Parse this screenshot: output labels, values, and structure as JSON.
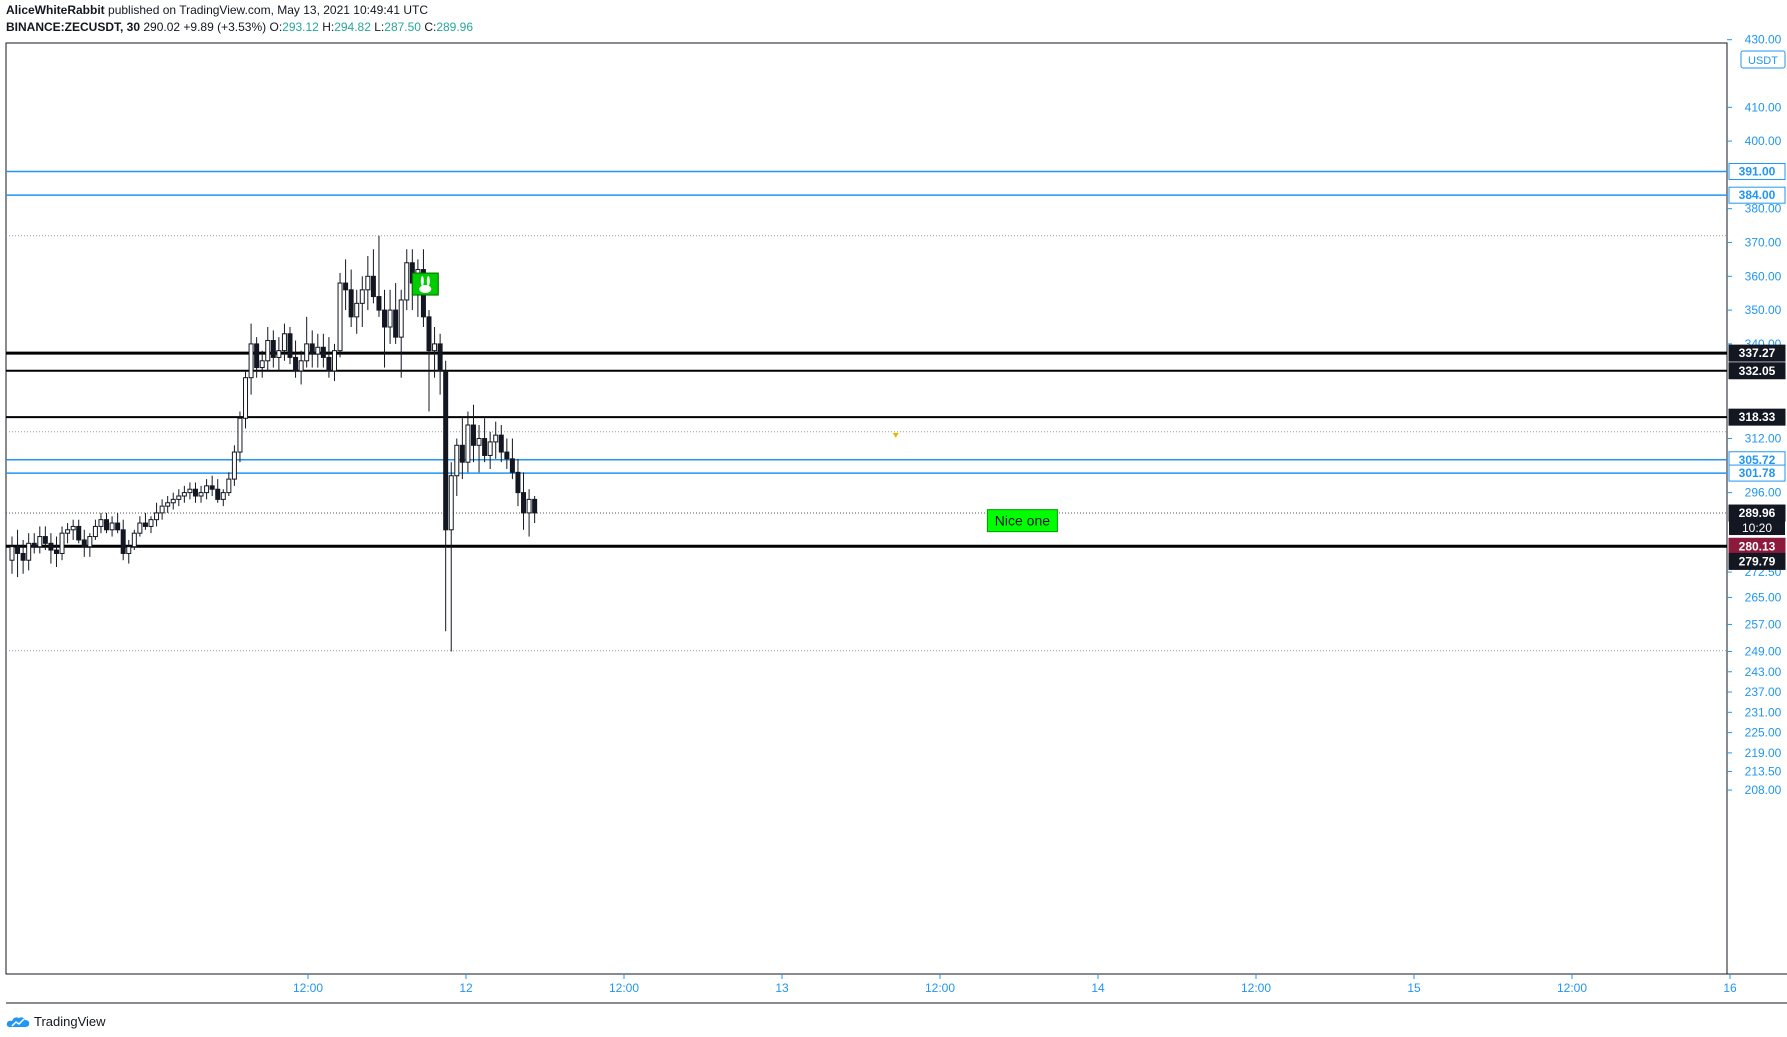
{
  "header": {
    "author": "AliceWhiteRabbit",
    "published": "published on TradingView.com, May 13, 2021 10:49:41 UTC",
    "symbol": "BINANCE:ZECUSDT, 30",
    "last": "290.02",
    "change": "+9.89 (+3.53%)",
    "o_label": "O:",
    "o_val": "293.12",
    "h_label": "H:",
    "h_val": "294.82",
    "l_label": "L:",
    "l_val": "287.50",
    "c_label": "C:",
    "c_val": "289.96"
  },
  "footer": {
    "brand": "TradingView"
  },
  "colors": {
    "accent": "#2196f3",
    "green": "#00ff00",
    "marker": "#8b1a3c",
    "axis": "#2196f3"
  },
  "chart_data": {
    "type": "candlestick",
    "currency": "USDT",
    "price_ticks": [
      "430.00",
      "410.00",
      "400.00",
      "380.00",
      "370.00",
      "360.00",
      "350.00",
      "340.00",
      "312.00",
      "296.00",
      "272.50",
      "265.00",
      "257.00",
      "249.00",
      "243.00",
      "237.00",
      "231.00",
      "225.00",
      "219.00",
      "213.50",
      "208.00"
    ],
    "time_ticks": [
      {
        "label": "12:00",
        "t": 0.5
      },
      {
        "label": "12",
        "t": 1.0
      },
      {
        "label": "12:00",
        "t": 1.5
      },
      {
        "label": "13",
        "t": 2.0
      },
      {
        "label": "12:00",
        "t": 2.5
      },
      {
        "label": "14",
        "t": 3.0
      },
      {
        "label": "12:00",
        "t": 3.5
      },
      {
        "label": "15",
        "t": 4.0
      },
      {
        "label": "12:00",
        "t": 4.5
      },
      {
        "label": "16",
        "t": 5.0
      }
    ],
    "horizontal_lines": [
      {
        "price": 391.0,
        "label": "391.00",
        "color": "#2196f3",
        "width": 1.5,
        "style": "solid",
        "badge": "blue"
      },
      {
        "price": 384.0,
        "label": "384.00",
        "color": "#2196f3",
        "width": 1.5,
        "style": "solid",
        "badge": "blue"
      },
      {
        "price": 372.0,
        "label": "",
        "color": "#999999",
        "width": 1,
        "style": "dotted",
        "badge": "none"
      },
      {
        "price": 337.27,
        "label": "337.27",
        "color": "#000000",
        "width": 3,
        "style": "solid",
        "badge": "black"
      },
      {
        "price": 332.05,
        "label": "332.05",
        "color": "#000000",
        "width": 2,
        "style": "solid",
        "badge": "black"
      },
      {
        "price": 318.33,
        "label": "318.33",
        "color": "#000000",
        "width": 2,
        "style": "solid",
        "badge": "black"
      },
      {
        "price": 314.0,
        "label": "",
        "color": "#999999",
        "width": 1,
        "style": "dotted",
        "badge": "none"
      },
      {
        "price": 305.72,
        "label": "305.72",
        "color": "#2196f3",
        "width": 1.5,
        "style": "solid",
        "badge": "blue"
      },
      {
        "price": 301.78,
        "label": "301.78",
        "color": "#2196f3",
        "width": 1.5,
        "style": "solid",
        "badge": "blue"
      },
      {
        "price": 289.96,
        "label": "289.96",
        "color": "#555555",
        "width": 1,
        "style": "dotted",
        "badge": "black"
      },
      {
        "price": 280.13,
        "label": "280.13",
        "color": "#000000",
        "width": 3,
        "style": "solid",
        "badge": "marker"
      },
      {
        "price": 279.79,
        "label": "279.79",
        "color": "#000000",
        "width": 0,
        "style": "none",
        "badge": "black"
      },
      {
        "price": 249.2,
        "label": "",
        "color": "#999999",
        "width": 1,
        "style": "dotted",
        "badge": "none"
      }
    ],
    "countdown": "10:20",
    "annotations": [
      {
        "type": "text-box",
        "text": "Nice one",
        "t": 2.65,
        "price": 288.0,
        "bg": "#00ff00"
      },
      {
        "type": "icon",
        "name": "rabbit-icon",
        "t": 0.83,
        "price": 358.0,
        "bg": "#00cc00"
      },
      {
        "type": "marker",
        "name": "yellow-triangle",
        "t": 2.36,
        "price": 312.8,
        "color": "#e6b800"
      }
    ],
    "candles": [
      [
        276,
        283,
        272,
        280
      ],
      [
        280,
        285,
        271,
        278
      ],
      [
        278,
        282,
        272,
        276
      ],
      [
        276,
        284,
        273,
        281
      ],
      [
        281,
        284,
        278,
        280
      ],
      [
        280,
        286,
        278,
        283
      ],
      [
        283,
        286,
        279,
        281
      ],
      [
        281,
        284,
        275,
        279
      ],
      [
        279,
        283,
        274,
        278
      ],
      [
        278,
        286,
        276,
        284
      ],
      [
        284,
        287,
        281,
        285
      ],
      [
        285,
        288,
        282,
        286
      ],
      [
        286,
        288,
        281,
        282
      ],
      [
        282,
        285,
        277,
        280
      ],
      [
        280,
        284,
        277,
        283
      ],
      [
        283,
        288,
        282,
        286
      ],
      [
        286,
        290,
        284,
        288
      ],
      [
        288,
        290,
        284,
        285
      ],
      [
        285,
        289,
        283,
        287
      ],
      [
        287,
        290,
        284,
        285
      ],
      [
        285,
        288,
        276,
        278
      ],
      [
        278,
        282,
        275,
        280
      ],
      [
        280,
        285,
        279,
        284
      ],
      [
        284,
        289,
        283,
        287
      ],
      [
        287,
        290,
        285,
        286
      ],
      [
        286,
        289,
        284,
        288
      ],
      [
        288,
        293,
        286,
        290
      ],
      [
        290,
        294,
        288,
        292
      ],
      [
        292,
        295,
        290,
        293
      ],
      [
        293,
        296,
        291,
        294
      ],
      [
        294,
        297,
        292,
        295
      ],
      [
        295,
        298,
        293,
        296
      ],
      [
        296,
        299,
        294,
        297
      ],
      [
        297,
        299,
        293,
        295
      ],
      [
        295,
        298,
        293,
        296
      ],
      [
        296,
        300,
        294,
        298
      ],
      [
        298,
        301,
        295,
        297
      ],
      [
        297,
        300,
        293,
        294
      ],
      [
        294,
        297,
        292,
        296
      ],
      [
        296,
        302,
        295,
        300
      ],
      [
        300,
        310,
        298,
        308
      ],
      [
        308,
        320,
        305,
        318
      ],
      [
        318,
        332,
        315,
        330
      ],
      [
        330,
        346,
        325,
        340
      ],
      [
        340,
        342,
        330,
        333
      ],
      [
        333,
        338,
        330,
        335
      ],
      [
        335,
        345,
        332,
        341
      ],
      [
        341,
        344,
        333,
        336
      ],
      [
        336,
        342,
        332,
        338
      ],
      [
        338,
        346,
        335,
        343
      ],
      [
        343,
        345,
        334,
        336
      ],
      [
        336,
        341,
        330,
        332
      ],
      [
        332,
        338,
        328,
        335
      ],
      [
        335,
        348,
        333,
        340
      ],
      [
        340,
        344,
        333,
        337
      ],
      [
        337,
        343,
        333,
        339
      ],
      [
        339,
        343,
        333,
        336
      ],
      [
        336,
        342,
        330,
        332
      ],
      [
        332,
        340,
        329,
        338
      ],
      [
        338,
        361,
        336,
        358
      ],
      [
        358,
        365,
        350,
        356
      ],
      [
        356,
        362,
        345,
        348
      ],
      [
        348,
        356,
        343,
        352
      ],
      [
        352,
        360,
        345,
        356
      ],
      [
        356,
        366,
        350,
        360
      ],
      [
        360,
        368,
        352,
        354
      ],
      [
        354,
        372,
        348,
        350
      ],
      [
        350,
        356,
        333,
        345
      ],
      [
        345,
        356,
        340,
        350
      ],
      [
        350,
        358,
        340,
        342
      ],
      [
        342,
        356,
        330,
        353
      ],
      [
        353,
        368,
        350,
        364
      ],
      [
        364,
        368,
        350,
        358
      ],
      [
        358,
        365,
        348,
        362
      ],
      [
        362,
        368,
        345,
        348
      ],
      [
        348,
        350,
        320,
        338
      ],
      [
        338,
        345,
        330,
        340
      ],
      [
        340,
        343,
        325,
        332
      ],
      [
        332,
        335,
        255,
        285
      ],
      [
        285,
        305,
        249,
        301
      ],
      [
        301,
        312,
        295,
        310
      ],
      [
        310,
        318,
        300,
        305
      ],
      [
        305,
        320,
        302,
        316
      ],
      [
        316,
        322,
        305,
        310
      ],
      [
        310,
        316,
        302,
        312
      ],
      [
        312,
        318,
        305,
        307
      ],
      [
        307,
        314,
        303,
        311
      ],
      [
        311,
        317,
        306,
        313
      ],
      [
        313,
        316,
        305,
        308
      ],
      [
        308,
        312,
        303,
        306
      ],
      [
        306,
        312,
        300,
        302
      ],
      [
        302,
        306,
        292,
        296
      ],
      [
        296,
        302,
        285,
        290
      ],
      [
        290,
        297,
        283,
        294
      ],
      [
        294,
        295,
        287,
        290
      ]
    ]
  }
}
